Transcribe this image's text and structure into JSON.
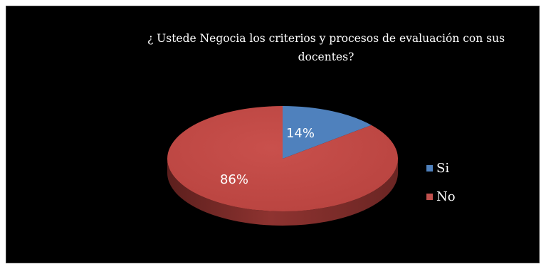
{
  "chart_data": {
    "type": "pie",
    "title_lines": [
      "¿ Ustede Negocia los criterios y procesos de evaluación con sus",
      "docentes?"
    ],
    "categories": [
      "Si",
      "No"
    ],
    "values": [
      14,
      86
    ],
    "data_labels": [
      "14%",
      "86%"
    ],
    "colors": [
      "#4f81bd",
      "#c0504d"
    ],
    "legend_position": "right",
    "style": "3d"
  }
}
